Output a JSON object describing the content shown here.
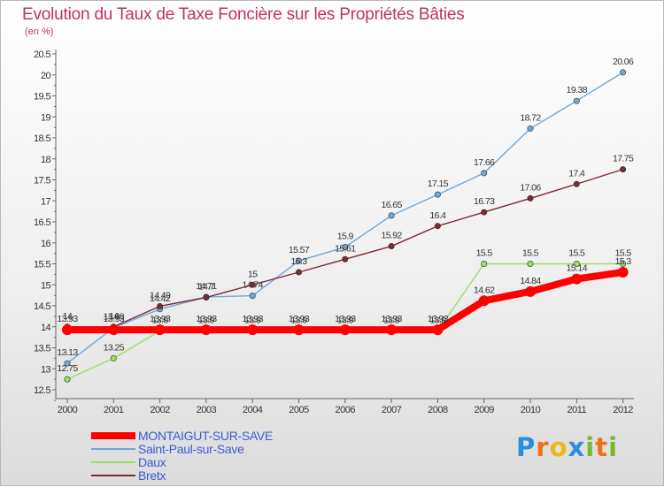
{
  "title": "Evolution du Taux de Taxe Foncière sur les Propriétés Bâties",
  "unit_label": "(en %)",
  "brand": {
    "letters": [
      "P",
      "r",
      "o",
      "x",
      "i",
      "t",
      "i"
    ],
    "colors": [
      "#2a8fd8",
      "#e8731a",
      "#e8b81a",
      "#2a8fd8",
      "#7ab82a",
      "#e8731a",
      "#7ab82a"
    ]
  },
  "chart_data": {
    "type": "line",
    "x": [
      "2000",
      "2001",
      "2002",
      "2003",
      "2004",
      "2005",
      "2006",
      "2007",
      "2008",
      "2009",
      "2010",
      "2011",
      "2012"
    ],
    "yticks": [
      "12.5",
      "13",
      "13.5",
      "14",
      "14.5",
      "15",
      "15.5",
      "16",
      "16.5",
      "17",
      "17.5",
      "18",
      "18.5",
      "19",
      "19.5",
      "20",
      "20.5"
    ],
    "ylim": [
      12.5,
      20.5
    ],
    "grid": false,
    "legend_placement": "bottom-left",
    "series": [
      {
        "name": "MONTAIGUT-SUR-SAVE",
        "color": "#ff0000",
        "values": [
          13.93,
          13.93,
          13.93,
          13.93,
          13.93,
          13.93,
          13.93,
          13.93,
          13.93,
          14.62,
          14.84,
          15.14,
          15.3
        ],
        "labels": [
          "13.93",
          "13.93",
          "13.93",
          "13.93",
          "13.93",
          "13.93",
          "13.93",
          "13.93",
          "13.93",
          "14.62",
          "14.84",
          "15.14",
          "15.3"
        ]
      },
      {
        "name": "Saint-Paul-sur-Save",
        "color": "#6fa8d8",
        "values": [
          13.13,
          13.98,
          14.42,
          14.71,
          14.74,
          15.57,
          15.9,
          16.65,
          17.15,
          17.66,
          18.72,
          19.38,
          20.06
        ],
        "labels": [
          "13.13",
          "13.98",
          "14.42",
          "14.71",
          "14.74",
          "15.57",
          "15.9",
          "16.65",
          "17.15",
          "17.66",
          "18.72",
          "19.38",
          "20.06"
        ]
      },
      {
        "name": "Daux",
        "color": "#99e066",
        "values": [
          12.75,
          13.25,
          13.9,
          13.9,
          13.9,
          13.9,
          13.9,
          13.9,
          13.9,
          15.5,
          15.5,
          15.5,
          15.5
        ],
        "labels": [
          "12.75",
          "13.25",
          "13.9",
          "13.9",
          "13.9",
          "13.9",
          "13.9",
          "13.9",
          "13.9",
          "15.5",
          "15.5",
          "15.5",
          "15.5"
        ]
      },
      {
        "name": "Bretx",
        "color": "#7a2a30",
        "values": [
          14.0,
          14.0,
          14.49,
          14.7,
          15.0,
          15.3,
          15.61,
          15.92,
          16.4,
          16.73,
          17.06,
          17.4,
          17.75
        ],
        "labels": [
          "14",
          "14",
          "14.49",
          "14.7",
          "15",
          "15.3",
          "15.61",
          "15.92",
          "16.4",
          "16.73",
          "17.06",
          "17.4",
          "17.75"
        ]
      }
    ]
  }
}
